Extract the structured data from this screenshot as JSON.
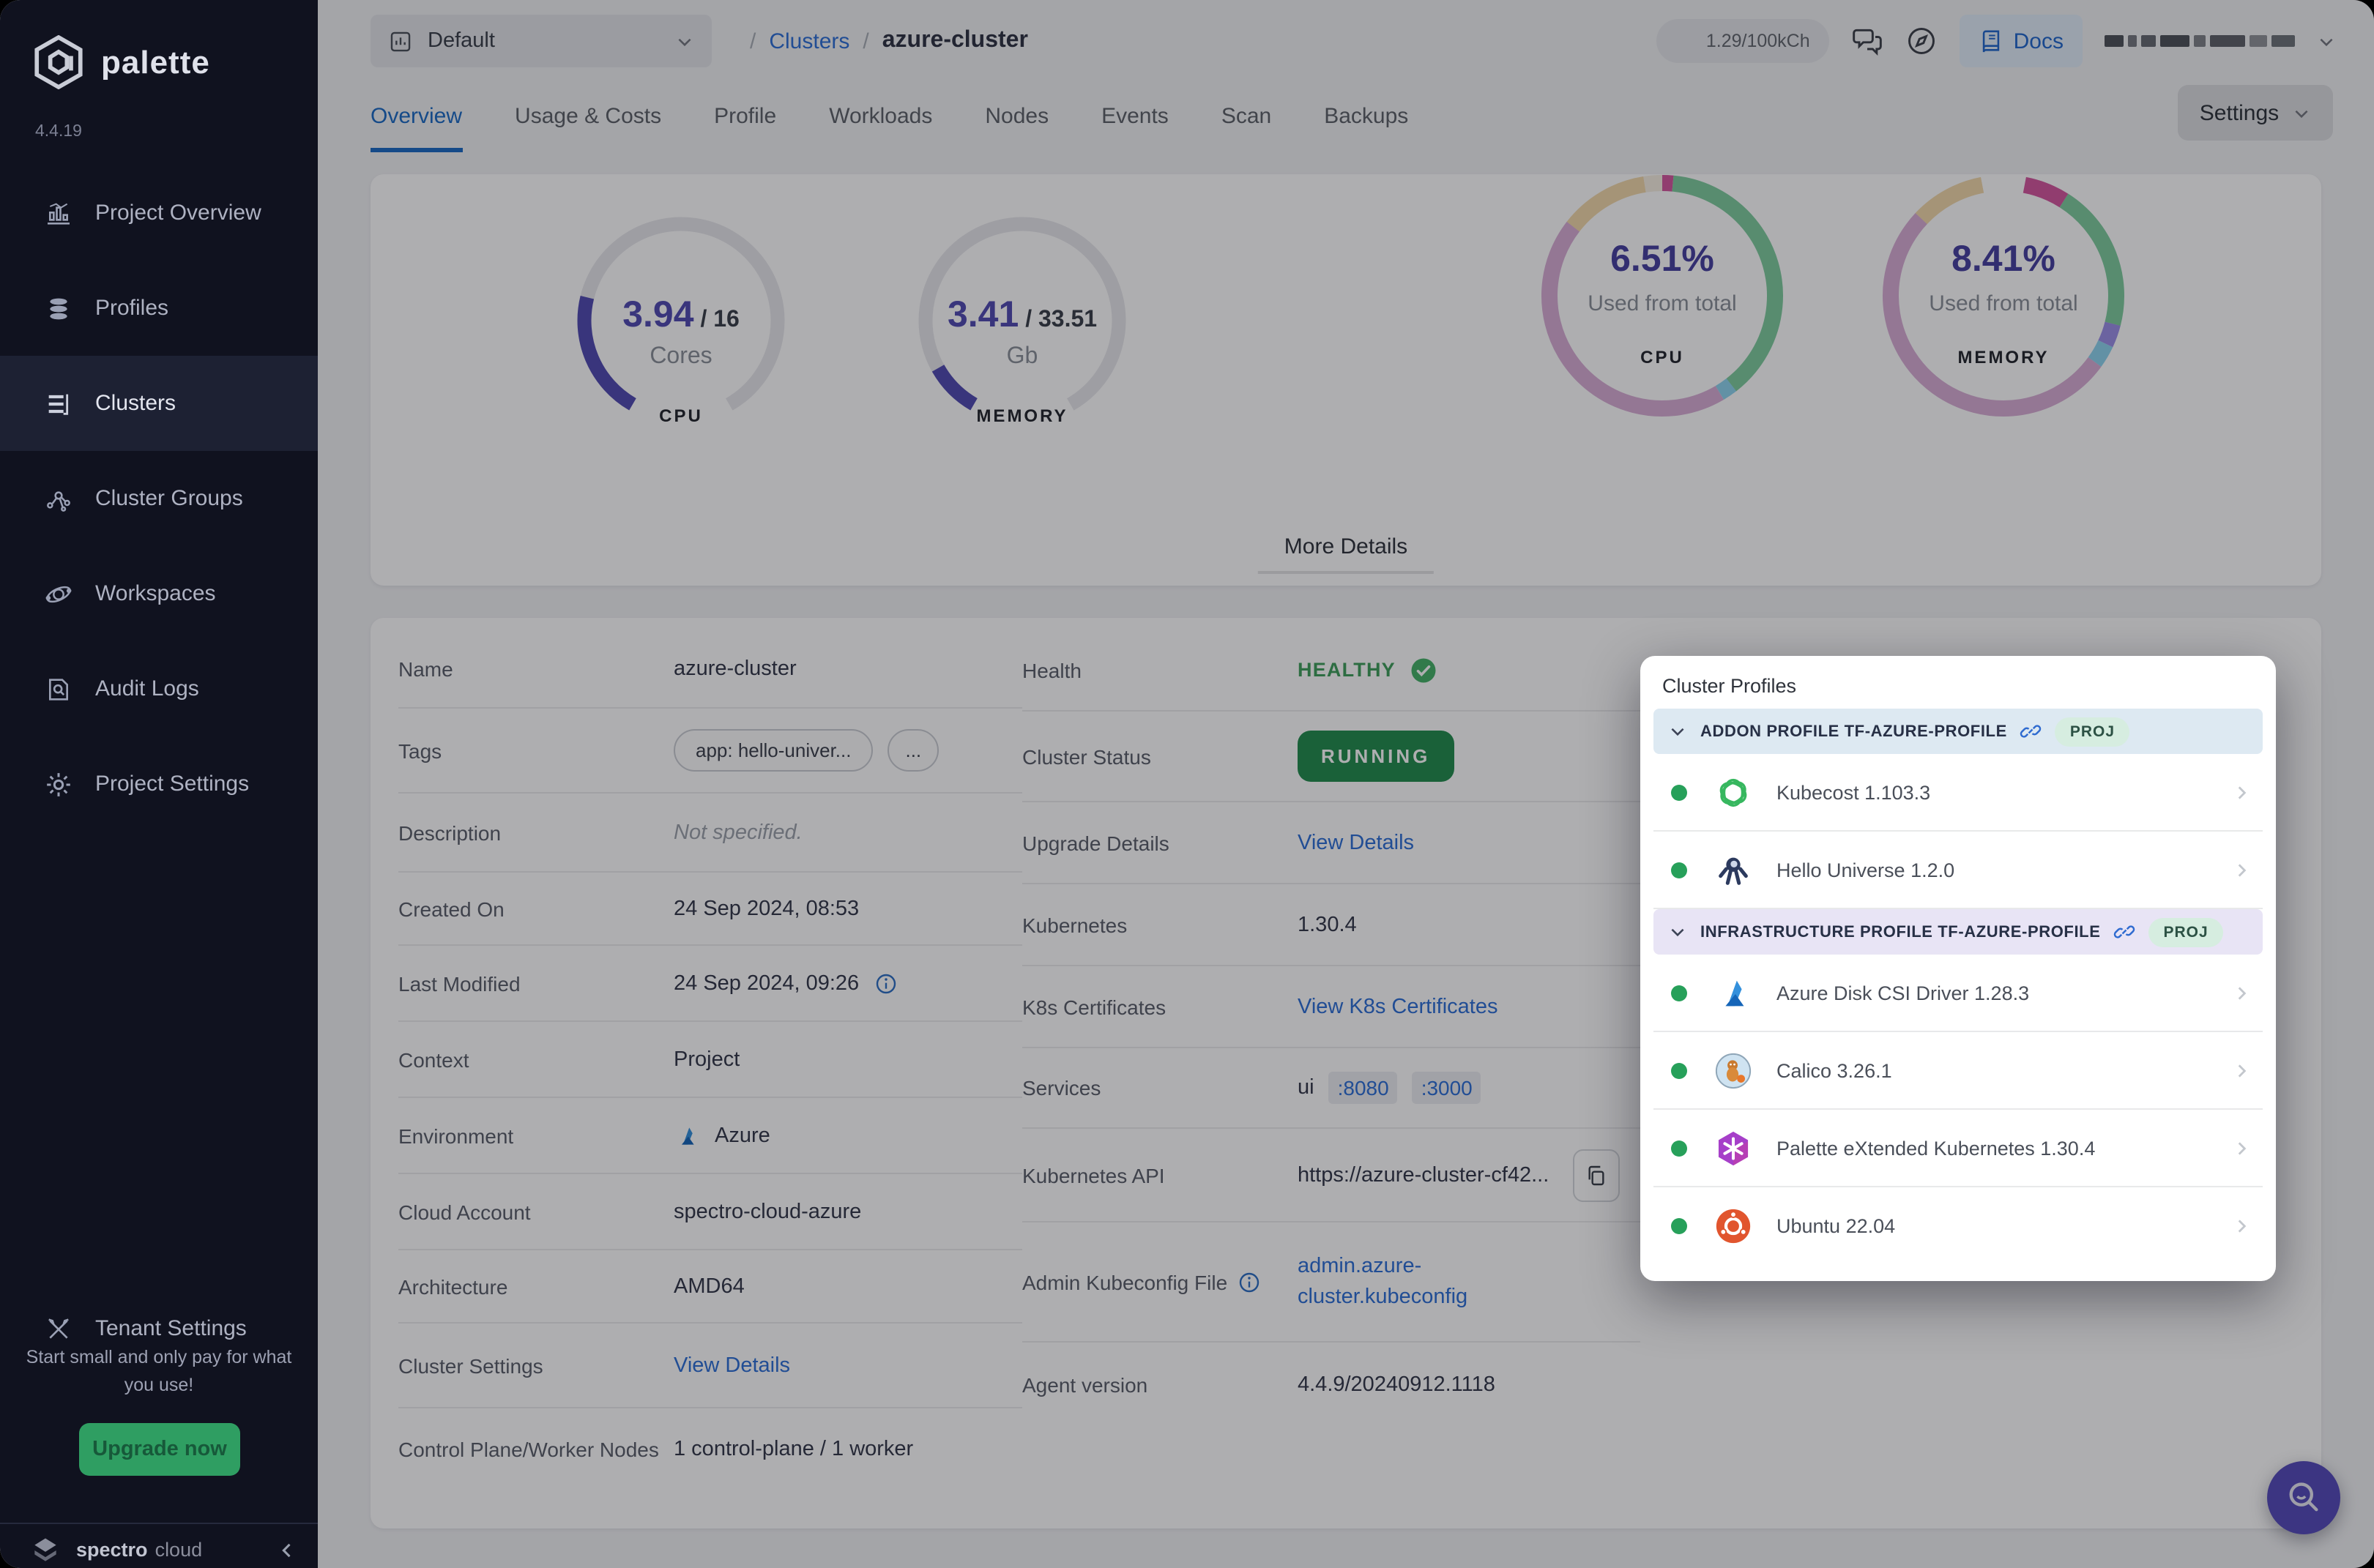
{
  "app": {
    "brand": "palette",
    "version": "4.4.19"
  },
  "sidebar": {
    "items": [
      {
        "label": "Project Overview",
        "icon": "chart-icon",
        "active": false
      },
      {
        "label": "Profiles",
        "icon": "layers-icon",
        "active": false
      },
      {
        "label": "Clusters",
        "icon": "server-icon",
        "active": true
      },
      {
        "label": "Cluster Groups",
        "icon": "network-icon",
        "active": false
      },
      {
        "label": "Workspaces",
        "icon": "orbit-icon",
        "active": false
      },
      {
        "label": "Audit Logs",
        "icon": "audit-icon",
        "active": false
      },
      {
        "label": "Project Settings",
        "icon": "gear-icon",
        "active": false
      }
    ],
    "tenant": {
      "label": "Tenant Settings",
      "icon": "tools-icon"
    },
    "promo": {
      "text": "Start small and only pay for what you use!",
      "button": "Upgrade now"
    },
    "footer": {
      "brand_bold": "spectro",
      "brand_light": "cloud"
    }
  },
  "topbar": {
    "project": "Default",
    "sep": "/",
    "breadcrumb": [
      {
        "label": "Clusters",
        "link": true
      },
      {
        "label": "azure-cluster",
        "link": false
      }
    ],
    "usage": "1.29/100kCh",
    "docs_label": "Docs"
  },
  "tabs": {
    "items": [
      "Overview",
      "Usage & Costs",
      "Profile",
      "Workloads",
      "Nodes",
      "Events",
      "Scan",
      "Backups"
    ],
    "active_index": 0,
    "settings_label": "Settings"
  },
  "overview": {
    "more_details": "More Details"
  },
  "chart_data": [
    {
      "type": "gauge",
      "id": "cpu-gauge",
      "value": 3.94,
      "total": 16,
      "value_display": "3.94",
      "total_display": "/ 16",
      "unit": "Cores",
      "footer": "CPU",
      "color": "#514bb2",
      "track": "#e8e8ec",
      "span_deg": 300
    },
    {
      "type": "gauge",
      "id": "memory-gauge",
      "value": 3.41,
      "total": 33.51,
      "value_display": "3.41",
      "total_display": "/ 33.51",
      "unit": "Gb",
      "footer": "MEMORY",
      "color": "#514bb2",
      "track": "#e8e8ec",
      "span_deg": 300
    },
    {
      "type": "donut",
      "id": "cpu-donut",
      "center": "6.51%",
      "caption": "Used from total",
      "footer": "CPU",
      "segments": [
        {
          "color": "#d4579f",
          "pct": 1.5
        },
        {
          "color": "#7fcd9f",
          "pct": 38
        },
        {
          "color": "#8ed4ef",
          "pct": 2
        },
        {
          "color": "#d8aed6",
          "pct": 44
        },
        {
          "color": "#f2d9ab",
          "pct": 12
        },
        {
          "color": "#f6efe2",
          "pct": 2.5
        }
      ]
    },
    {
      "type": "donut",
      "id": "memory-donut",
      "center": "8.41%",
      "caption": "Used from total",
      "footer": "MEMORY",
      "segments": [
        {
          "color": "#ffffff",
          "pct": 3
        },
        {
          "color": "#d4579f",
          "pct": 6
        },
        {
          "color": "#7fcd9f",
          "pct": 20
        },
        {
          "color": "#9c8fe8",
          "pct": 3
        },
        {
          "color": "#8ed4ef",
          "pct": 3
        },
        {
          "color": "#d8aed6",
          "pct": 52
        },
        {
          "color": "#f2d9ab",
          "pct": 10
        },
        {
          "color": "#ffffff",
          "pct": 3
        }
      ]
    }
  ],
  "details": {
    "left": [
      {
        "label": "Name",
        "type": "text",
        "value": "azure-cluster",
        "h": 54
      },
      {
        "label": "Tags",
        "type": "tags",
        "tags": [
          "app: hello-univer...",
          "..."
        ],
        "h": 58
      },
      {
        "label": "Description",
        "type": "muted",
        "value": "Not specified.",
        "h": 54
      },
      {
        "label": "Created On",
        "type": "text",
        "value": "24 Sep 2024, 08:53",
        "h": 50
      },
      {
        "label": "Last Modified",
        "type": "text-info",
        "value": "24 Sep 2024, 09:26",
        "h": 52
      },
      {
        "label": "Context",
        "type": "text",
        "value": "Project",
        "h": 52
      },
      {
        "label": "Environment",
        "type": "env",
        "value": "Azure",
        "h": 52
      },
      {
        "label": "Cloud Account",
        "type": "text",
        "value": "spectro-cloud-azure",
        "h": 52
      },
      {
        "label": "Architecture",
        "type": "text",
        "value": "AMD64",
        "h": 50
      },
      {
        "label": "Cluster Settings",
        "type": "link",
        "value": "View Details",
        "h": 58
      },
      {
        "label": "Control Plane/Worker Nodes",
        "type": "text",
        "value": "1 control-plane / 1 worker",
        "h": 56
      }
    ],
    "right": [
      {
        "label": "Health",
        "type": "health",
        "value": "HEALTHY",
        "h": 56
      },
      {
        "label": "Cluster Status",
        "type": "status",
        "value": "RUNNING",
        "h": 62
      },
      {
        "label": "Upgrade Details",
        "type": "link",
        "value": "View Details",
        "h": 56
      },
      {
        "label": "Kubernetes",
        "type": "text",
        "value": "1.30.4",
        "h": 56
      },
      {
        "label": "K8s Certificates",
        "type": "link",
        "value": "View K8s Certificates",
        "h": 56
      },
      {
        "label": "Services",
        "type": "ports",
        "prefix": "ui",
        "ports": [
          ":8080",
          ":3000"
        ],
        "h": 55
      },
      {
        "label": "Kubernetes API",
        "type": "api",
        "value": "https://azure-cluster-cf42...",
        "h": 64
      },
      {
        "label": "Admin Kubeconfig File",
        "type": "kubeconfig",
        "label_info": true,
        "value": "admin.azure-cluster.kubeconfig",
        "h": 82
      },
      {
        "label": "Agent version",
        "type": "text",
        "value": "4.4.9/20240912.1118",
        "h": 58
      }
    ]
  },
  "cluster_profiles": {
    "title": "Cluster Profiles",
    "sections": [
      {
        "name": "ADDON PROFILE TF-AZURE-PROFILE",
        "badge": "PROJ",
        "tint": "blue",
        "items": [
          {
            "name": "Kubecost 1.103.3",
            "icon": "kubecost-icon"
          },
          {
            "name": "Hello Universe 1.2.0",
            "icon": "hello-universe-icon"
          }
        ]
      },
      {
        "name": "INFRASTRUCTURE PROFILE TF-AZURE-PROFILE",
        "badge": "PROJ",
        "tint": "purple",
        "items": [
          {
            "name": "Azure Disk CSI Driver 1.28.3",
            "icon": "azure-icon"
          },
          {
            "name": "Calico 3.26.1",
            "icon": "calico-icon"
          },
          {
            "name": "Palette eXtended Kubernetes 1.30.4",
            "icon": "pxk-icon"
          },
          {
            "name": "Ubuntu 22.04",
            "icon": "ubuntu-icon"
          }
        ]
      }
    ]
  }
}
